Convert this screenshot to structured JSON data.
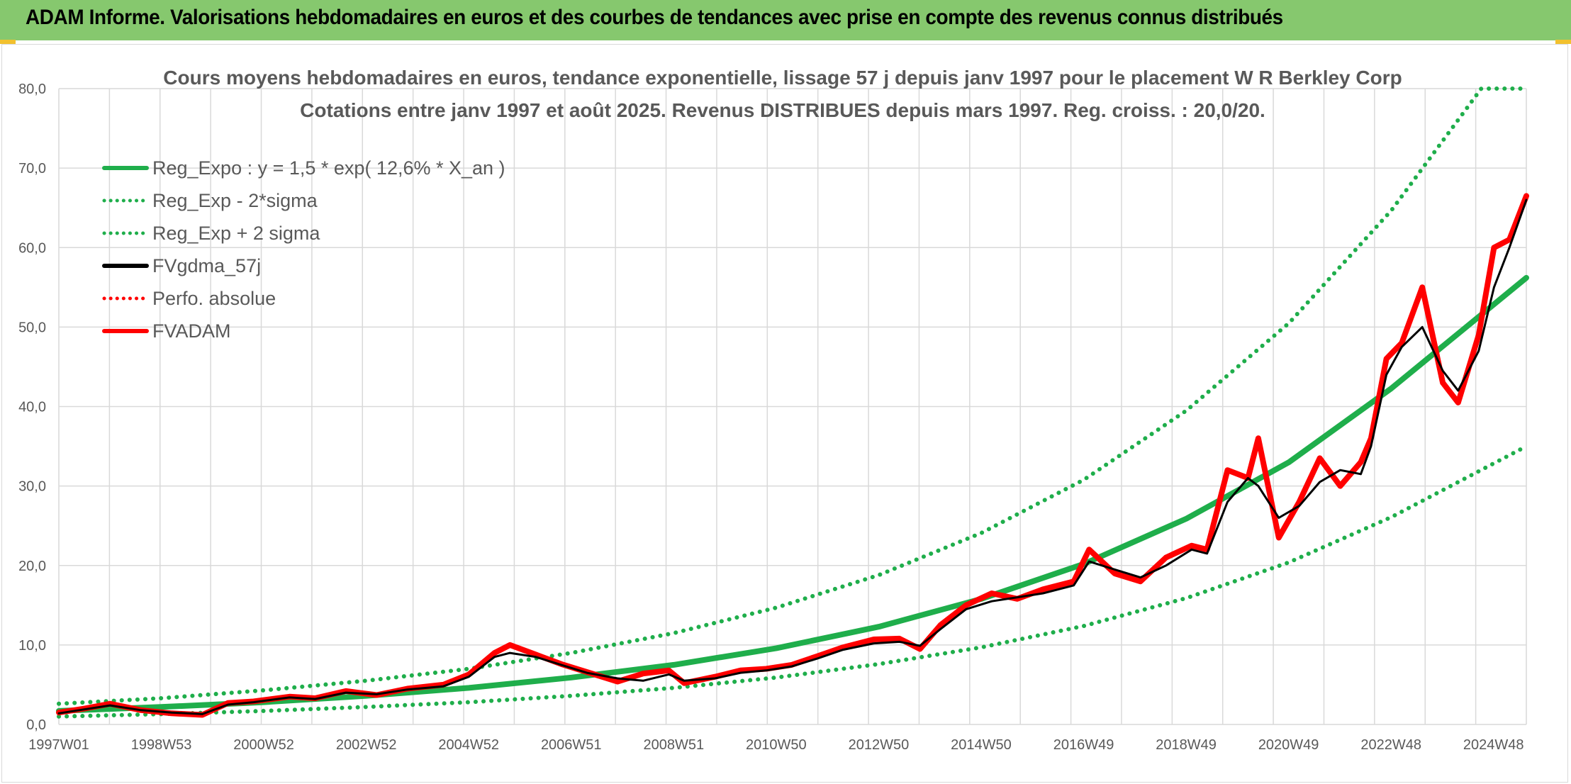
{
  "header": {
    "title": "ADAM Informe. Valorisations hebdomadaires en euros et des courbes de tendances avec prise en compte des revenus connus distribués"
  },
  "colors": {
    "banner": "#86c86e",
    "regression": "#1fae4b",
    "black": "#000000",
    "red": "#ff0000",
    "grid": "#d9d9d9",
    "text": "#595959"
  },
  "chart_data": {
    "type": "line",
    "title": "Cours moyens hebdomadaires en euros, tendance exponentielle, lissage 57 j depuis janv 1997 pour le placement W R Berkley Corp",
    "subtitle": "Cotations entre janv 1997 et août 2025. Revenus DISTRIBUES depuis mars 1997. Reg. croiss. : 20,0/20.",
    "x_tick_labels": [
      "1997W01",
      "1998W53",
      "2000W52",
      "2002W52",
      "2004W52",
      "2006W51",
      "2008W51",
      "2010W50",
      "2012W50",
      "2014W50",
      "2016W49",
      "2018W49",
      "2020W49",
      "2022W48",
      "2024W48"
    ],
    "y_tick_labels": [
      "0,0",
      "10,0",
      "20,0",
      "30,0",
      "40,0",
      "50,0",
      "60,0",
      "70,0",
      "80,0"
    ],
    "ylim": [
      0,
      80
    ],
    "xlim": [
      1997.0,
      2025.63
    ],
    "grid": true,
    "legend_position": "top-left",
    "legend": [
      {
        "label": "Reg_Expo : y = 1,5 * exp( 12,6% *  X_an )",
        "color": "#1fae4b",
        "style": "solid"
      },
      {
        "label": "Reg_Exp - 2*sigma",
        "color": "#1fae4b",
        "style": "dotted"
      },
      {
        "label": "Reg_Exp + 2 sigma",
        "color": "#1fae4b",
        "style": "dotted"
      },
      {
        "label": "FVgdma_57j",
        "color": "#000000",
        "style": "solid"
      },
      {
        "label": "Perfo. absolue",
        "color": "#ff0000",
        "style": "dotted"
      },
      {
        "label": "FVADAM",
        "color": "#ff0000",
        "style": "solid"
      }
    ],
    "series": [
      {
        "name": "Reg_Expo : y = 1,5 * exp( 12,6% *  X_an )",
        "x": [
          1997,
          1999,
          2001,
          2003,
          2005,
          2007,
          2009,
          2011,
          2013,
          2015,
          2017,
          2019,
          2021,
          2023,
          2025.63
        ],
        "values": [
          1.7,
          2.2,
          2.8,
          3.6,
          4.6,
          5.9,
          7.5,
          9.6,
          12.3,
          15.8,
          20.2,
          25.9,
          33.0,
          42.3,
          56.2
        ]
      },
      {
        "name": "Reg_Exp - 2*sigma",
        "x": [
          1997,
          1999,
          2001,
          2003,
          2005,
          2007,
          2009,
          2011,
          2013,
          2015,
          2017,
          2019,
          2021,
          2023,
          2025.63
        ],
        "values": [
          1.0,
          1.3,
          1.7,
          2.2,
          2.8,
          3.6,
          4.6,
          5.9,
          7.6,
          9.7,
          12.4,
          15.9,
          20.4,
          26.1,
          35.0
        ]
      },
      {
        "name": "Reg_Exp + 2 sigma",
        "x": [
          1997,
          1999,
          2001,
          2003,
          2005,
          2007,
          2009,
          2011,
          2013,
          2015,
          2017,
          2019,
          2021,
          2023,
          2024.75,
          2025.63
        ],
        "values": [
          2.6,
          3.3,
          4.3,
          5.5,
          7.0,
          9.0,
          11.5,
          14.7,
          18.8,
          24.1,
          30.8,
          39.5,
          50.5,
          64.7,
          80.0,
          80.0
        ]
      },
      {
        "name": "FVgdma_57j",
        "x": [
          1997.0,
          1997.5,
          1998.0,
          1998.6,
          1999.2,
          1999.8,
          2000.3,
          2000.8,
          2001.5,
          2002.0,
          2002.6,
          2003.2,
          2003.8,
          2004.5,
          2005.0,
          2005.5,
          2005.8,
          2006.3,
          2006.8,
          2007.3,
          2007.9,
          2008.4,
          2008.9,
          2009.2,
          2009.8,
          2010.3,
          2010.8,
          2011.3,
          2011.8,
          2012.3,
          2012.9,
          2013.4,
          2013.8,
          2014.2,
          2014.7,
          2015.2,
          2015.7,
          2016.2,
          2016.8,
          2017.1,
          2017.6,
          2018.1,
          2018.6,
          2019.1,
          2019.4,
          2019.8,
          2020.2,
          2020.4,
          2020.8,
          2021.2,
          2021.6,
          2022.0,
          2022.4,
          2022.6,
          2022.9,
          2023.2,
          2023.6,
          2024.0,
          2024.3,
          2024.7,
          2025.0,
          2025.3,
          2025.63
        ],
        "values": [
          1.4,
          1.9,
          2.4,
          1.8,
          1.5,
          1.3,
          2.5,
          2.8,
          3.4,
          3.2,
          4.0,
          3.8,
          4.4,
          4.8,
          6.0,
          8.5,
          9.0,
          8.5,
          7.5,
          6.5,
          5.8,
          5.5,
          6.3,
          5.5,
          5.8,
          6.5,
          6.8,
          7.3,
          8.3,
          9.4,
          10.2,
          10.4,
          9.9,
          12.0,
          14.5,
          15.5,
          16.0,
          16.5,
          17.5,
          20.5,
          19.5,
          18.5,
          20.0,
          22.0,
          21.5,
          28.0,
          31.0,
          30.0,
          26.0,
          27.5,
          30.5,
          32.0,
          31.5,
          35.0,
          44.0,
          47.5,
          50.0,
          44.5,
          42.0,
          47.0,
          55.0,
          60.0,
          66.0
        ]
      },
      {
        "name": "FVADAM",
        "x": [
          1997.0,
          1997.5,
          1998.0,
          1998.6,
          1999.2,
          1999.8,
          2000.3,
          2000.8,
          2001.5,
          2002.0,
          2002.6,
          2003.2,
          2003.8,
          2004.5,
          2005.0,
          2005.5,
          2005.8,
          2006.3,
          2006.8,
          2007.3,
          2007.9,
          2008.4,
          2008.9,
          2009.2,
          2009.8,
          2010.3,
          2010.8,
          2011.3,
          2011.8,
          2012.3,
          2012.9,
          2013.4,
          2013.8,
          2014.2,
          2014.7,
          2015.2,
          2015.7,
          2016.2,
          2016.8,
          2017.1,
          2017.6,
          2018.1,
          2018.6,
          2019.1,
          2019.4,
          2019.8,
          2020.2,
          2020.4,
          2020.8,
          2021.2,
          2021.6,
          2022.0,
          2022.4,
          2022.6,
          2022.9,
          2023.2,
          2023.6,
          2024.0,
          2024.3,
          2024.7,
          2025.0,
          2025.3,
          2025.63
        ],
        "values": [
          1.5,
          2.0,
          2.6,
          1.8,
          1.4,
          1.2,
          2.7,
          2.9,
          3.5,
          3.3,
          4.2,
          3.7,
          4.5,
          5.0,
          6.3,
          9.0,
          10.0,
          8.8,
          7.6,
          6.6,
          5.4,
          6.4,
          6.8,
          5.2,
          6.0,
          6.8,
          7.0,
          7.5,
          8.6,
          9.7,
          10.7,
          10.8,
          9.5,
          12.5,
          15.0,
          16.5,
          15.8,
          17.0,
          18.0,
          22.0,
          19.0,
          18.0,
          21.0,
          22.5,
          22.0,
          32.0,
          31.0,
          36.0,
          23.5,
          28.0,
          33.5,
          30.0,
          33.0,
          36.0,
          46.0,
          48.0,
          55.0,
          43.0,
          40.5,
          49.0,
          60.0,
          61.0,
          66.5
        ]
      }
    ]
  }
}
